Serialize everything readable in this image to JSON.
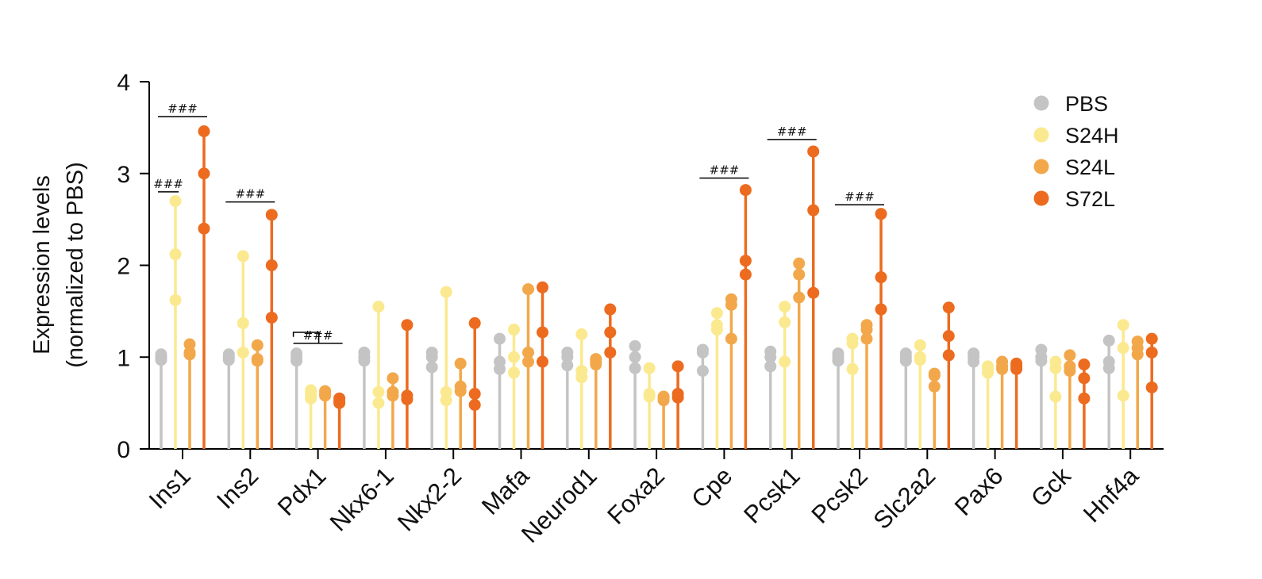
{
  "chart_data": {
    "type": "scatter",
    "ylabel_line1": "Expression levels",
    "ylabel_line2": "(normalized to PBS)",
    "ylim": [
      0,
      4
    ],
    "yticks": [
      "0",
      "1",
      "2",
      "3",
      "4"
    ],
    "categories": [
      "Ins1",
      "Ins2",
      "Pdx1",
      "Nkx6-1",
      "Nkx2-2",
      "Mafa",
      "Neurod1",
      "Foxa2",
      "Cpe",
      "Pcsk1",
      "Pcsk2",
      "Slc2a2",
      "Pax6",
      "Gck",
      "Hnf4a"
    ],
    "legend_position": "top-right",
    "series": [
      {
        "name": "PBS",
        "color": "#c4c4c4",
        "points": [
          [
            0.97,
            1.0,
            1.03
          ],
          [
            0.97,
            1.0,
            1.03
          ],
          [
            0.96,
            1.0,
            1.04
          ],
          [
            0.96,
            1.0,
            1.05
          ],
          [
            0.89,
            1.0,
            1.05
          ],
          [
            0.87,
            0.95,
            1.2
          ],
          [
            0.91,
            1.0,
            1.05
          ],
          [
            0.88,
            1.0,
            1.12
          ],
          [
            0.85,
            1.05,
            1.08
          ],
          [
            0.9,
            1.0,
            1.06
          ],
          [
            0.96,
            1.0,
            1.04
          ],
          [
            0.96,
            1.0,
            1.04
          ],
          [
            0.95,
            1.0,
            1.04
          ],
          [
            0.96,
            1.0,
            1.08
          ],
          [
            0.88,
            0.95,
            1.18
          ]
        ]
      },
      {
        "name": "S24H",
        "color": "#fbe98f",
        "points": [
          [
            1.62,
            2.12,
            2.7
          ],
          [
            1.05,
            1.37,
            2.1
          ],
          [
            0.55,
            0.6,
            0.64
          ],
          [
            0.5,
            0.62,
            1.55
          ],
          [
            0.53,
            0.62,
            1.71
          ],
          [
            0.83,
            1.0,
            1.3
          ],
          [
            0.78,
            0.85,
            1.25
          ],
          [
            0.57,
            0.6,
            0.88
          ],
          [
            1.3,
            1.35,
            1.48
          ],
          [
            0.95,
            1.38,
            1.55
          ],
          [
            0.87,
            1.15,
            1.2
          ],
          [
            0.97,
            1.0,
            1.13
          ],
          [
            0.83,
            0.87,
            0.9
          ],
          [
            0.57,
            0.88,
            0.95
          ],
          [
            0.58,
            1.1,
            1.35
          ]
        ]
      },
      {
        "name": "S24L",
        "color": "#f2a84a",
        "points": [
          [
            1.03,
            1.05,
            1.14
          ],
          [
            0.96,
            0.98,
            1.13
          ],
          [
            0.58,
            0.6,
            0.63
          ],
          [
            0.58,
            0.62,
            0.77
          ],
          [
            0.63,
            0.68,
            0.93
          ],
          [
            0.95,
            1.05,
            1.74
          ],
          [
            0.92,
            0.95,
            0.98
          ],
          [
            0.53,
            0.55,
            0.57
          ],
          [
            1.2,
            1.57,
            1.63
          ],
          [
            1.65,
            1.9,
            2.02
          ],
          [
            1.2,
            1.3,
            1.35
          ],
          [
            0.68,
            0.8,
            0.82
          ],
          [
            0.87,
            0.9,
            0.95
          ],
          [
            0.85,
            0.9,
            1.02
          ],
          [
            1.03,
            1.1,
            1.17
          ]
        ]
      },
      {
        "name": "S72L",
        "color": "#ec6b1f",
        "points": [
          [
            2.4,
            3.0,
            3.46
          ],
          [
            1.43,
            2.0,
            2.55
          ],
          [
            0.5,
            0.52,
            0.55
          ],
          [
            0.54,
            0.58,
            1.35
          ],
          [
            0.48,
            0.6,
            1.37
          ],
          [
            0.95,
            1.27,
            1.76
          ],
          [
            1.05,
            1.27,
            1.52
          ],
          [
            0.56,
            0.6,
            0.9
          ],
          [
            1.9,
            2.05,
            2.82
          ],
          [
            1.7,
            2.6,
            3.24
          ],
          [
            1.52,
            1.87,
            2.56
          ],
          [
            1.02,
            1.23,
            1.54
          ],
          [
            0.87,
            0.9,
            0.93
          ],
          [
            0.55,
            0.77,
            0.92
          ],
          [
            0.67,
            1.05,
            1.2
          ]
        ]
      }
    ],
    "annotations": [
      {
        "label": "###",
        "category": 0,
        "from": 0,
        "to": 1,
        "y": 2.8
      },
      {
        "label": "###",
        "category": 0,
        "from": 0,
        "to": 3,
        "y": 3.62
      },
      {
        "label": "###",
        "category": 1,
        "from": 0,
        "to": 3,
        "y": 2.69
      },
      {
        "label": "###",
        "category": 2,
        "from": 0,
        "to": 3,
        "y": 1.15
      },
      {
        "label": "###",
        "category": 8,
        "from": 0,
        "to": 3,
        "y": 2.95
      },
      {
        "label": "###",
        "category": 9,
        "from": 0,
        "to": 3,
        "y": 3.37
      },
      {
        "label": "###",
        "category": 10,
        "from": 0,
        "to": 3,
        "y": 2.66
      }
    ]
  }
}
